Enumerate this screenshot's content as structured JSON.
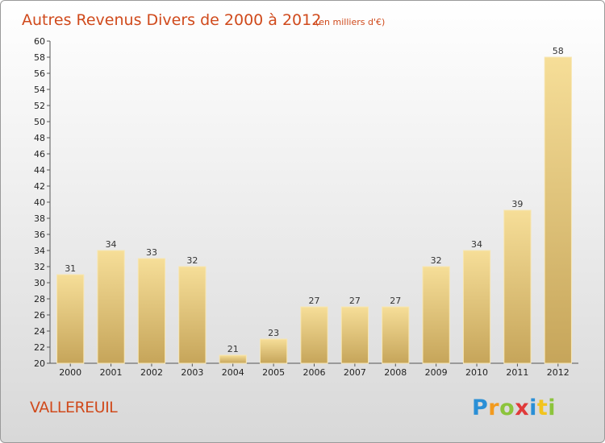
{
  "chart_data": {
    "type": "bar",
    "title": "Autres Revenus Divers de 2000 à 2012",
    "subtitle": "(en milliers d'€)",
    "categories": [
      "2000",
      "2001",
      "2002",
      "2003",
      "2004",
      "2005",
      "2006",
      "2007",
      "2008",
      "2009",
      "2010",
      "2011",
      "2012"
    ],
    "values": [
      31,
      34,
      33,
      32,
      21,
      23,
      27,
      27,
      27,
      32,
      34,
      39,
      58
    ],
    "ylim": [
      20,
      60
    ],
    "ytick_step": 2,
    "grid": false,
    "xlabel": "",
    "ylabel": "",
    "colors": {
      "bar_light": "#f5dc95",
      "bar_dark": "#c9a85a",
      "title": "#d04a1c"
    }
  },
  "commune": "VALLEREUIL",
  "logo": {
    "letters": [
      {
        "char": "P",
        "color": "#2a8fd6"
      },
      {
        "char": "r",
        "color": "#f29a1e"
      },
      {
        "char": "o",
        "color": "#8cc43c"
      },
      {
        "char": "x",
        "color": "#e03a3a"
      },
      {
        "char": "i",
        "color": "#2a8fd6"
      },
      {
        "char": "t",
        "color": "#f2c41e"
      },
      {
        "char": "i",
        "color": "#8cc43c"
      }
    ]
  }
}
